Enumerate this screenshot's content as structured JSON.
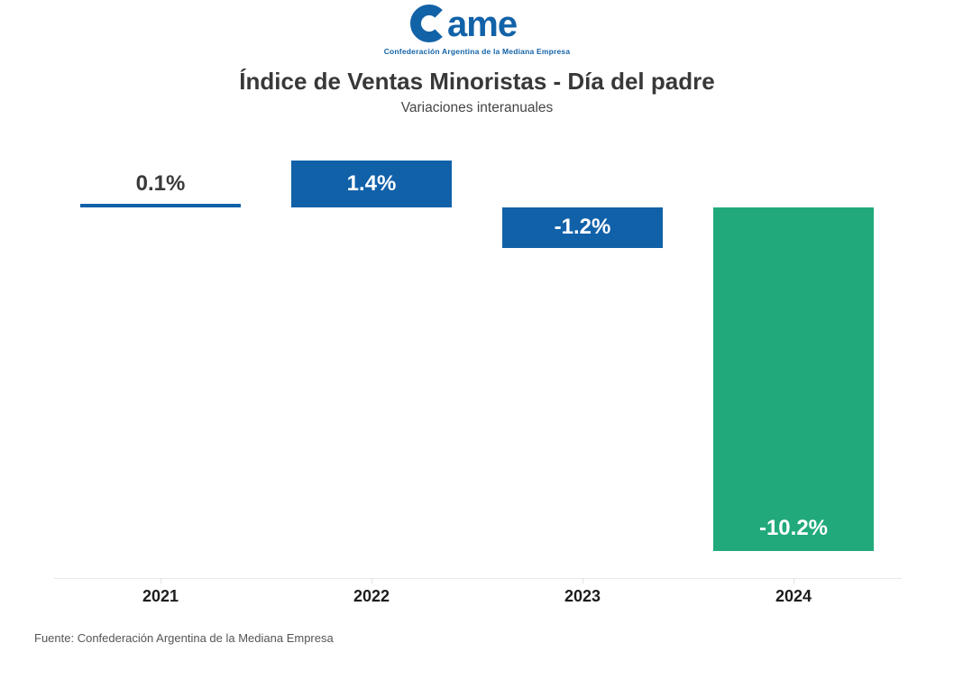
{
  "logo": {
    "mark_text": "ame",
    "subtext": "Confederación Argentina de la Mediana Empresa",
    "color": "#1262a8"
  },
  "header": {
    "title": "Índice de Ventas Minoristas - Día del padre",
    "subtitle": "Variaciones interanuales"
  },
  "chart_data": {
    "type": "bar",
    "categories": [
      "2021",
      "2022",
      "2023",
      "2024"
    ],
    "values": [
      0.1,
      1.4,
      -1.2,
      -10.2
    ],
    "labels": [
      "0.1%",
      "1.4%",
      "-1.2%",
      "-10.2%"
    ],
    "colors": [
      "#1161a9",
      "#1161a9",
      "#1161a9",
      "#21a97c"
    ],
    "title": "Índice de Ventas Minoristas - Día del padre",
    "subtitle": "Variaciones interanuales",
    "xlabel": "",
    "ylabel": "",
    "ylim": [
      -10.8,
      1.8
    ],
    "baseline": 0,
    "grid": false,
    "legend": null,
    "value_label_color_outside": "#3a3a3a",
    "value_label_color_inside": "#ffffff",
    "axis_color": "#e9e9e9"
  },
  "footer": {
    "source": "Fuente: Confederación Argentina de la Mediana Empresa"
  }
}
